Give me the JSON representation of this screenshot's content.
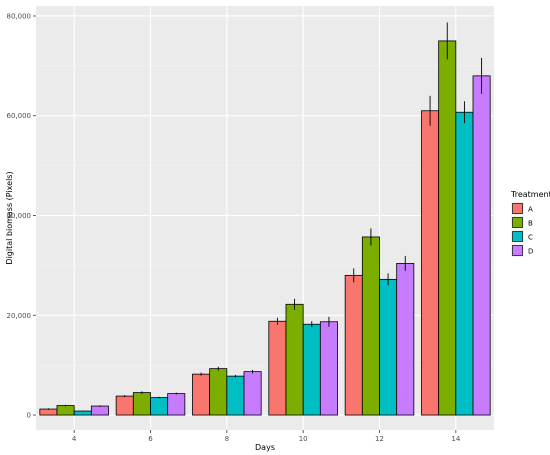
{
  "chart_data": {
    "type": "bar",
    "title": "",
    "xlabel": "Days",
    "ylabel": "Digital biomass (Pixels)",
    "categories": [
      "4",
      "6",
      "8",
      "10",
      "12",
      "14"
    ],
    "ylim": [
      -3000,
      82000
    ],
    "yticks": [
      0,
      20000,
      40000,
      60000,
      80000
    ],
    "ytick_labels": [
      "0",
      "20,000",
      "40,000",
      "60,000",
      "80,000"
    ],
    "grid": true,
    "legend": {
      "title": "Treatment",
      "position": "right"
    },
    "error_bars": true,
    "series": [
      {
        "name": "A",
        "color": "#F8766D",
        "values": [
          1200,
          3800,
          8200,
          18800,
          28000,
          61000
        ],
        "errors": [
          150,
          200,
          300,
          700,
          1400,
          3000
        ]
      },
      {
        "name": "B",
        "color": "#7CAE00",
        "values": [
          1900,
          4500,
          9300,
          22200,
          35700,
          75000
        ],
        "errors": [
          150,
          250,
          400,
          1100,
          1700,
          3700
        ]
      },
      {
        "name": "C",
        "color": "#00BFC4",
        "values": [
          800,
          3500,
          7800,
          18200,
          27200,
          60700
        ],
        "errors": [
          100,
          150,
          250,
          600,
          1200,
          2200
        ]
      },
      {
        "name": "D",
        "color": "#C77CFF",
        "values": [
          1800,
          4300,
          8700,
          18700,
          30400,
          68000
        ],
        "errors": [
          150,
          200,
          350,
          1000,
          1500,
          3600
        ]
      }
    ]
  }
}
